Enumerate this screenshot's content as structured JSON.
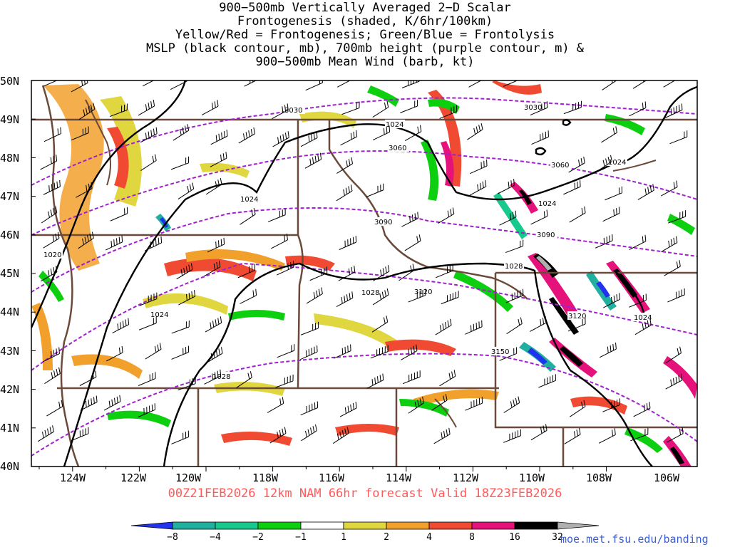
{
  "title_lines": [
    "900−500mb Vertically Averaged 2−D Scalar",
    "Frontogenesis (shaded, K/6hr/100km)",
    "Yellow/Red = Frontogenesis;  Green/Blue = Frontolysis",
    "MSLP (black contour, mb), 700mb height (purple contour, m) &",
    "900−500mb Mean Wind (barb, kt)"
  ],
  "forecast_label": "00Z21FEB2026 12km NAM 66hr forecast Valid 18Z23FEB2026",
  "credit": "moe.met.fsu.edu/banding",
  "map": {
    "lat_labels": [
      "50N",
      "49N",
      "48N",
      "47N",
      "46N",
      "45N",
      "44N",
      "43N",
      "42N",
      "41N",
      "40N"
    ],
    "lon_labels": [
      "124W",
      "122W",
      "120W",
      "118W",
      "116W",
      "114W",
      "112W",
      "110W",
      "108W",
      "106W"
    ],
    "mslp_labels": [
      "1024",
      "1024",
      "1024",
      "1024",
      "1024",
      "1020",
      "1024",
      "1028",
      "1028",
      "1028",
      "1024"
    ],
    "height_labels": [
      "3030",
      "3030",
      "3060",
      "3060",
      "3090",
      "3090",
      "3120",
      "3120",
      "3150"
    ]
  },
  "colorbar": {
    "labels": [
      "−8",
      "−4",
      "−2",
      "−1",
      "1",
      "2",
      "4",
      "8",
      "16",
      "32"
    ],
    "colors": [
      "#2233ee",
      "#21b0a0",
      "#17c98c",
      "#0ccf10",
      "#ffffff",
      "#e0d640",
      "#f2a02c",
      "#f04a32",
      "#e4127a",
      "#000000",
      "#b0b0b0"
    ]
  },
  "colors": {
    "mslp": "#000000",
    "height": "#a020d0",
    "borders": "#6b4a3a",
    "forecast_label": "#ff5a5a",
    "credit": "#3a5fd8"
  }
}
